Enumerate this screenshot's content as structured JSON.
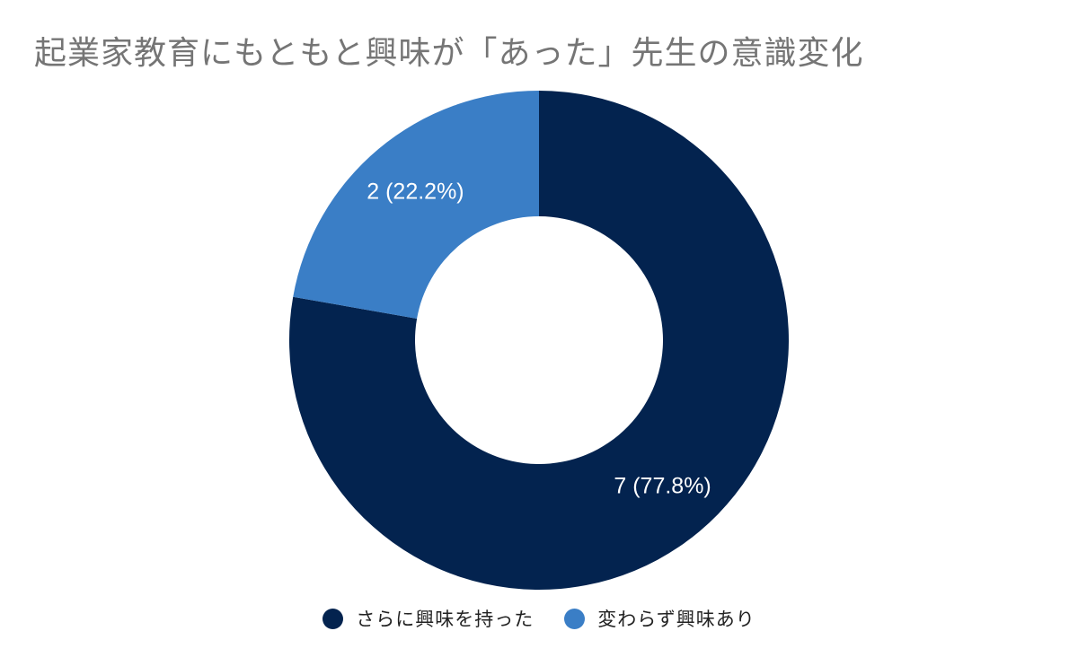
{
  "chart_data": {
    "type": "pie",
    "title": "起業家教育にもともと興味が「あった」先生の意識変化",
    "donut": true,
    "legend_position": "bottom",
    "slices": [
      {
        "name": "さらに興味を持った",
        "value": 7,
        "percent": 77.8,
        "label": "7 (77.8%)",
        "color": "#03234f"
      },
      {
        "name": "変わらず興味あり",
        "value": 2,
        "percent": 22.2,
        "label": "2 (22.2%)",
        "color": "#3a7ec6"
      }
    ]
  }
}
